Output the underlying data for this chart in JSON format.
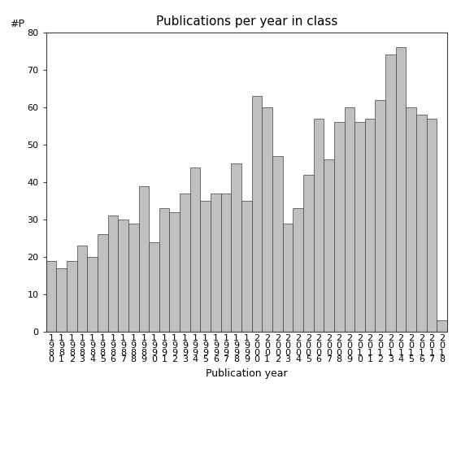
{
  "title": "Publications per year in class",
  "xlabel": "Publication year",
  "ylabel": "#P",
  "bar_color": "#c0c0c0",
  "edge_color": "#404040",
  "years": [
    1980,
    1981,
    1982,
    1983,
    1984,
    1985,
    1986,
    1987,
    1988,
    1989,
    1990,
    1991,
    1992,
    1993,
    1994,
    1995,
    1996,
    1997,
    1998,
    1999,
    2000,
    2001,
    2002,
    2003,
    2004,
    2005,
    2006,
    2007,
    2008,
    2009,
    2010,
    2011,
    2012,
    2013,
    2014,
    2015,
    2016,
    2017,
    2018
  ],
  "values": [
    19,
    17,
    19,
    23,
    20,
    26,
    31,
    30,
    29,
    39,
    24,
    33,
    32,
    37,
    44,
    35,
    37,
    37,
    45,
    35,
    63,
    60,
    47,
    29,
    33,
    42,
    57,
    46,
    56,
    60,
    56,
    57,
    62,
    74,
    76,
    60,
    58,
    57,
    3
  ],
  "ylim": [
    0,
    80
  ],
  "yticks": [
    0,
    10,
    20,
    30,
    40,
    50,
    60,
    70,
    80
  ],
  "background_color": "#ffffff",
  "title_fontsize": 11,
  "label_fontsize": 9,
  "tick_fontsize": 8
}
